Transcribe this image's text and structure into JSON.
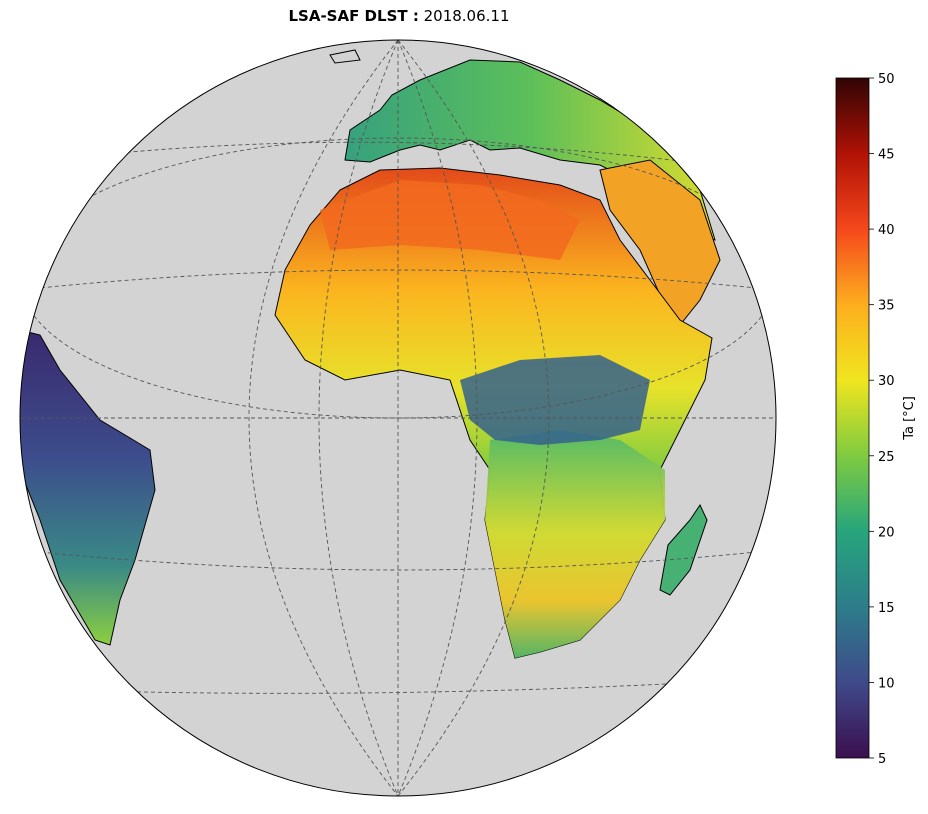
{
  "title": {
    "bold_part": "LSA-SAF DLST :",
    "date": "2018.06.11"
  },
  "map": {
    "projection": "orthographic",
    "ocean_color": "#d3d3d3",
    "nodata_color": "#ffffff",
    "gridlines": true
  },
  "colorbar": {
    "label": "Ta [°C]",
    "min": 5,
    "max": 50,
    "ticks": [
      {
        "value": 5,
        "label": "5"
      },
      {
        "value": 10,
        "label": "10"
      },
      {
        "value": 15,
        "label": "15"
      },
      {
        "value": 20,
        "label": "20"
      },
      {
        "value": 25,
        "label": "25"
      },
      {
        "value": 30,
        "label": "30"
      },
      {
        "value": 35,
        "label": "35"
      },
      {
        "value": 40,
        "label": "40"
      },
      {
        "value": 45,
        "label": "45"
      },
      {
        "value": 50,
        "label": "50"
      }
    ],
    "colors": [
      "#3b0f4f",
      "#3f4a8a",
      "#2d7d8a",
      "#27a57c",
      "#7fcb3f",
      "#f0e51f",
      "#fdae1e",
      "#f5481c",
      "#b01205",
      "#300505"
    ]
  }
}
